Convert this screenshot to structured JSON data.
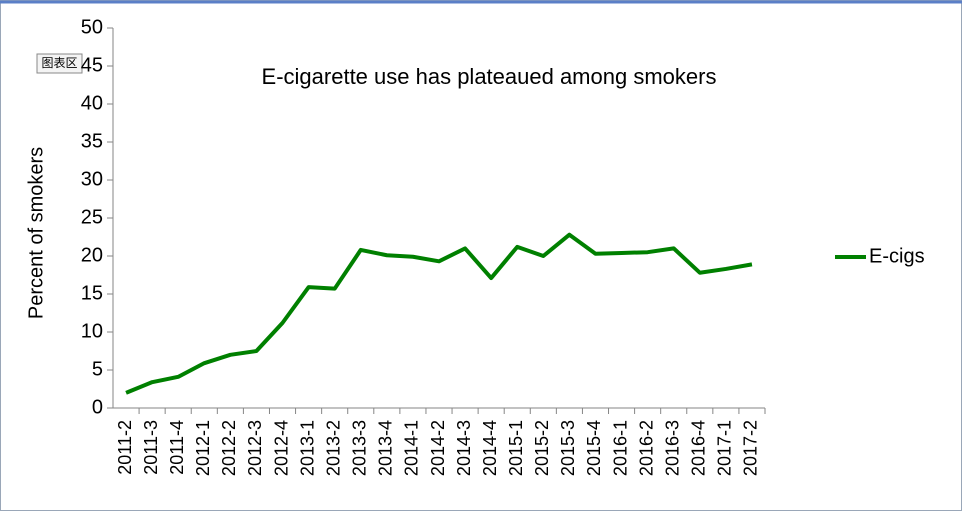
{
  "tooltip": "图表区",
  "chart_data": {
    "type": "line",
    "title": "E-cigarette use has plateaued among smokers",
    "y_label": "Percent of smokers",
    "categories": [
      "2011-2",
      "2011-3",
      "2011-4",
      "2012-1",
      "2012-2",
      "2012-3",
      "2012-4",
      "2013-1",
      "2013-2",
      "2013-3",
      "2013-4",
      "2014-1",
      "2014-2",
      "2014-3",
      "2014-4",
      "2015-1",
      "2015-2",
      "2015-3",
      "2015-4",
      "2016-1",
      "2016-2",
      "2016-3",
      "2016-4",
      "2017-1",
      "2017-2"
    ],
    "series": [
      {
        "name": "E-cigs",
        "color": "#008000",
        "values": [
          2.0,
          3.4,
          4.1,
          5.9,
          7.0,
          7.5,
          11.2,
          15.9,
          15.7,
          20.8,
          20.1,
          19.9,
          19.3,
          21.0,
          17.1,
          21.2,
          20.0,
          22.8,
          20.3,
          20.4,
          20.5,
          21.0,
          17.8,
          18.3,
          18.9
        ]
      }
    ],
    "ylim": [
      0,
      50
    ],
    "yticks": [
      0,
      5,
      10,
      15,
      20,
      25,
      30,
      35,
      40,
      45,
      50
    ],
    "grid": false,
    "legend": "right"
  }
}
